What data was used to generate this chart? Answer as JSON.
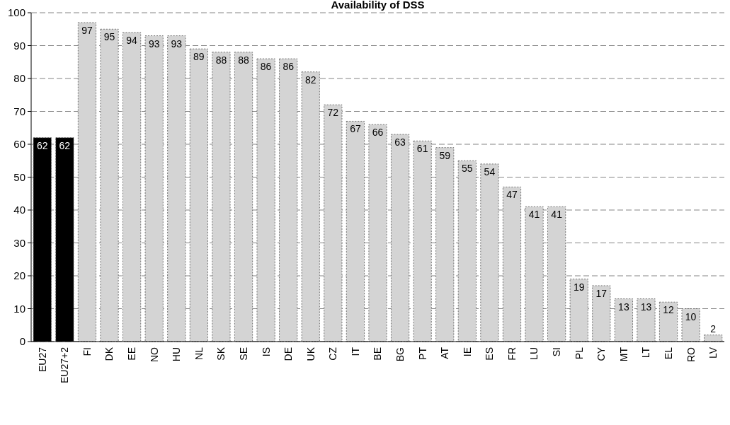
{
  "chart_data": {
    "type": "bar",
    "title": "Availability of DSS",
    "categories": [
      "EU27",
      "EU27+2",
      "FI",
      "DK",
      "EE",
      "NO",
      "HU",
      "NL",
      "SK",
      "SE",
      "IS",
      "DE",
      "UK",
      "CZ",
      "IT",
      "BE",
      "BG",
      "PT",
      "AT",
      "IE",
      "ES",
      "FR",
      "LU",
      "SI",
      "PL",
      "CY",
      "MT",
      "LT",
      "EL",
      "RO",
      "LV"
    ],
    "values": [
      62,
      62,
      97,
      95,
      94,
      93,
      93,
      89,
      88,
      88,
      86,
      86,
      82,
      72,
      67,
      66,
      63,
      61,
      59,
      55,
      54,
      47,
      41,
      41,
      19,
      17,
      13,
      13,
      12,
      10,
      2
    ],
    "colors": [
      "#000000",
      "#000000",
      "#d4d4d4",
      "#d4d4d4",
      "#d4d4d4",
      "#d4d4d4",
      "#d4d4d4",
      "#d4d4d4",
      "#d4d4d4",
      "#d4d4d4",
      "#d4d4d4",
      "#d4d4d4",
      "#d4d4d4",
      "#d4d4d4",
      "#d4d4d4",
      "#d4d4d4",
      "#d4d4d4",
      "#d4d4d4",
      "#d4d4d4",
      "#d4d4d4",
      "#d4d4d4",
      "#d4d4d4",
      "#d4d4d4",
      "#d4d4d4",
      "#d4d4d4",
      "#d4d4d4",
      "#d4d4d4",
      "#d4d4d4",
      "#d4d4d4",
      "#d4d4d4",
      "#d4d4d4"
    ],
    "ylim": [
      0,
      100
    ],
    "yticks": [
      0,
      10,
      20,
      30,
      40,
      50,
      60,
      70,
      80,
      90,
      100
    ],
    "grid": "y",
    "data_labels": true
  }
}
